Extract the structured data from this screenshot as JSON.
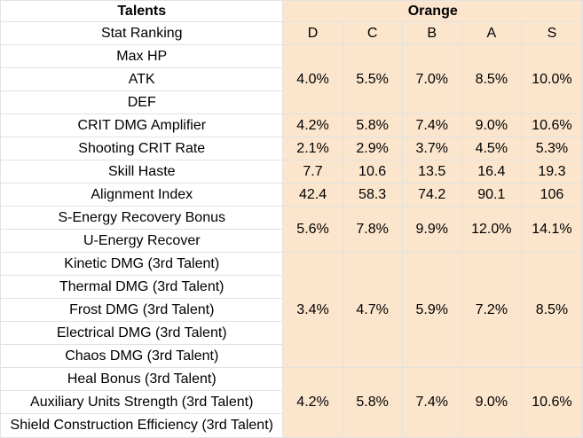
{
  "header": {
    "talents": "Talents",
    "orange": "Orange"
  },
  "ranking": {
    "label": "Stat Ranking",
    "grades": [
      "D",
      "C",
      "B",
      "A",
      "S"
    ]
  },
  "groups": [
    {
      "stats": [
        "Max HP",
        "ATK",
        "DEF"
      ],
      "values": [
        "4.0%",
        "5.5%",
        "7.0%",
        "8.5%",
        "10.0%"
      ]
    },
    {
      "stats": [
        "CRIT DMG Amplifier"
      ],
      "values": [
        "4.2%",
        "5.8%",
        "7.4%",
        "9.0%",
        "10.6%"
      ]
    },
    {
      "stats": [
        "Shooting CRIT Rate"
      ],
      "values": [
        "2.1%",
        "2.9%",
        "3.7%",
        "4.5%",
        "5.3%"
      ]
    },
    {
      "stats": [
        "Skill Haste"
      ],
      "values": [
        "7.7",
        "10.6",
        "13.5",
        "16.4",
        "19.3"
      ]
    },
    {
      "stats": [
        "Alignment Index"
      ],
      "values": [
        "42.4",
        "58.3",
        "74.2",
        "90.1",
        "106"
      ]
    },
    {
      "stats": [
        "S-Energy Recovery Bonus",
        "U-Energy Recover"
      ],
      "values": [
        "5.6%",
        "7.8%",
        "9.9%",
        "12.0%",
        "14.1%"
      ]
    },
    {
      "stats": [
        "Kinetic DMG (3rd Talent)",
        "Thermal DMG (3rd Talent)",
        "Frost DMG (3rd Talent)",
        "Electrical DMG (3rd Talent)",
        "Chaos DMG (3rd Talent)"
      ],
      "values": [
        "3.4%",
        "4.7%",
        "5.9%",
        "7.2%",
        "8.5%"
      ]
    },
    {
      "stats": [
        "Heal Bonus (3rd Talent)",
        "Auxiliary Units Strength (3rd Talent)",
        "Shield Construction Efficiency (3rd Talent)"
      ],
      "values": [
        "4.2%",
        "5.8%",
        "7.4%",
        "9.0%",
        "10.6%"
      ]
    }
  ],
  "colors": {
    "peach": "#fce5cd",
    "grid": "#e2e2e2",
    "separator": "#000000"
  }
}
